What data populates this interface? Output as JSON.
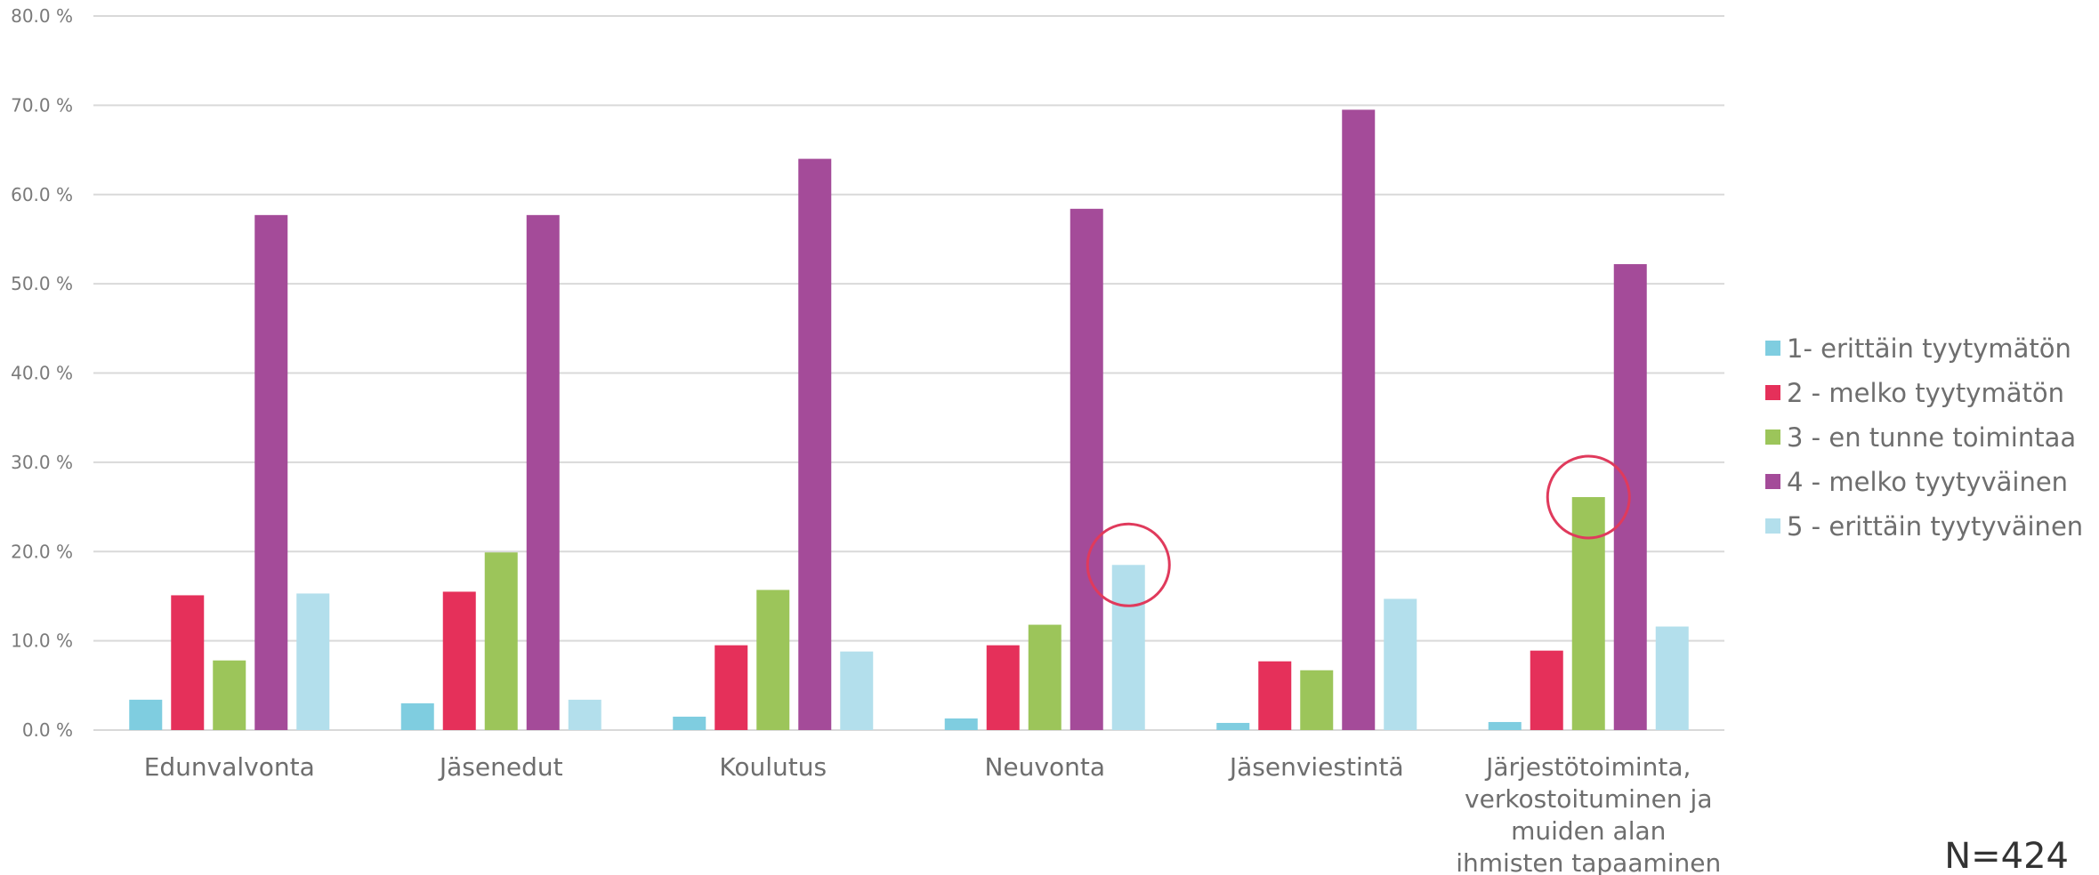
{
  "chart_data": {
    "type": "bar",
    "categories": [
      [
        "Edunvalvonta"
      ],
      [
        "Jäsenedut"
      ],
      [
        "Koulutus"
      ],
      [
        "Neuvonta"
      ],
      [
        "Jäsenviestintä"
      ],
      [
        "Järjestötoiminta,",
        "verkostoituminen ja",
        "muiden alan",
        "ihmisten tapaaminen"
      ]
    ],
    "series": [
      {
        "name": "1- erittäin tyytymätön",
        "color": "#7fcde0",
        "values": [
          3.4,
          3.0,
          1.5,
          1.3,
          0.8,
          0.9
        ]
      },
      {
        "name": "2 - melko tyytymätön",
        "color": "#e5305a",
        "values": [
          15.1,
          15.5,
          9.5,
          9.5,
          7.7,
          8.9
        ]
      },
      {
        "name": "3 - en tunne toimintaa",
        "color": "#9cc55a",
        "values": [
          7.8,
          19.9,
          15.7,
          11.8,
          6.7,
          26.1
        ]
      },
      {
        "name": "4 - melko tyytyväinen",
        "color": "#a44b99",
        "values": [
          57.7,
          57.7,
          64.0,
          58.4,
          69.5,
          52.2
        ]
      },
      {
        "name": "5 - erittäin tyytyväinen",
        "color": "#b3dfec",
        "values": [
          15.3,
          3.4,
          8.8,
          18.5,
          14.7,
          11.6
        ]
      }
    ],
    "ylim": [
      0,
      80
    ],
    "yticks": [
      "0.0 %",
      "10.0 %",
      "20.0 %",
      "30.0 %",
      "40.0 %",
      "50.0 %",
      "60.0 %",
      "70.0 %",
      "80.0 %"
    ],
    "grid": true,
    "legend_position": "right",
    "highlights": [
      {
        "category": 3,
        "series": 4
      },
      {
        "category": 5,
        "series": 2
      }
    ],
    "highlight_color": "#e03a5c",
    "gridline_color": "#d9d9d9"
  },
  "sample_size": "N=424"
}
